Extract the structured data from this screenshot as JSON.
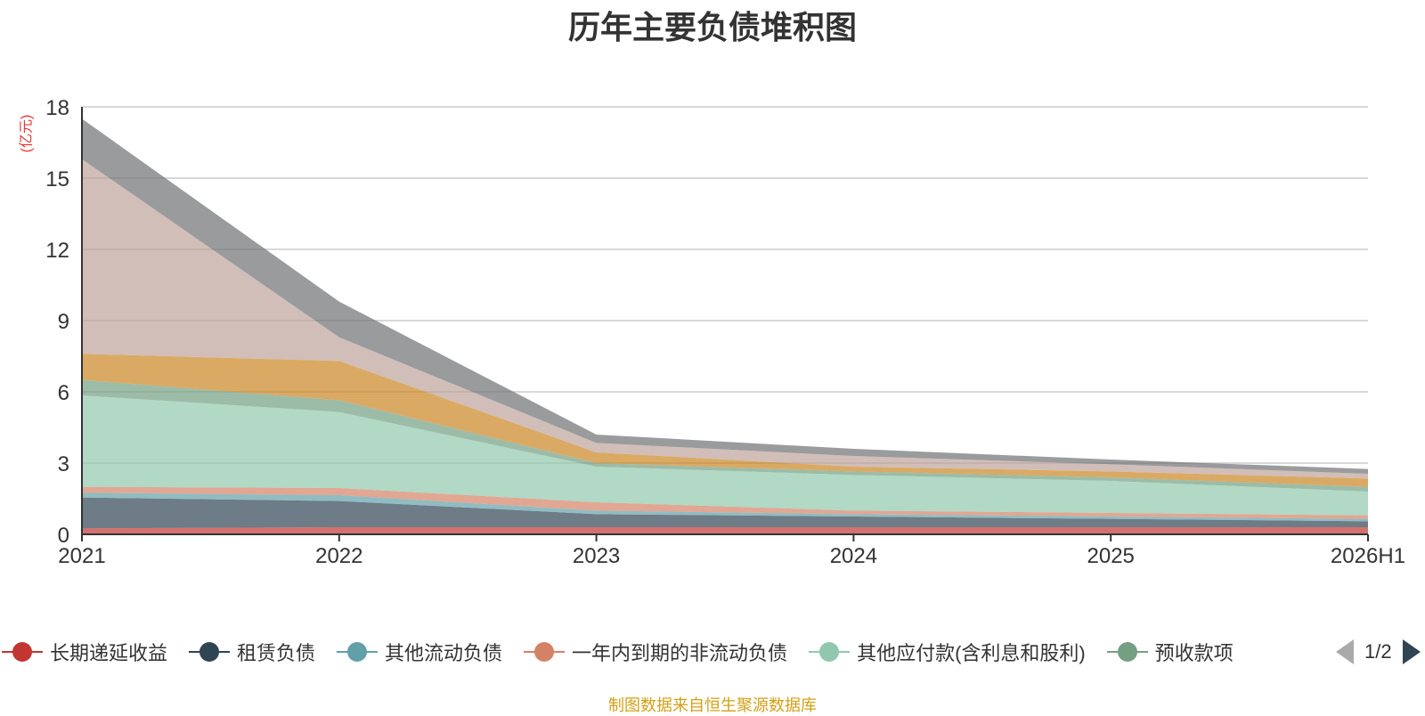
{
  "chart_data": {
    "type": "area",
    "stacked": true,
    "title": "历年主要负债堆积图",
    "ylabel": "(亿元)",
    "xlabel": "",
    "x": [
      "2021",
      "2022",
      "2023",
      "2024",
      "2025",
      "2026H1"
    ],
    "ylim": [
      0,
      18
    ],
    "yticks": [
      0,
      3,
      6,
      9,
      12,
      15,
      18
    ],
    "grid": true,
    "legend_position": "bottom",
    "series": [
      {
        "name": "长期递延收益",
        "color": "#c23531",
        "values": [
          0.25,
          0.3,
          0.3,
          0.3,
          0.3,
          0.3
        ]
      },
      {
        "name": "租赁负债",
        "color": "#2f4554",
        "values": [
          1.3,
          1.1,
          0.55,
          0.45,
          0.35,
          0.25
        ]
      },
      {
        "name": "其他流动负债",
        "color": "#61a0a8",
        "values": [
          0.2,
          0.25,
          0.15,
          0.1,
          0.1,
          0.1
        ]
      },
      {
        "name": "一年内到期的非流动负债",
        "color": "#d48265",
        "values": [
          0.25,
          0.3,
          0.35,
          0.15,
          0.15,
          0.15
        ]
      },
      {
        "name": "其他应付款(含利息和股利)",
        "color": "#91c7ae",
        "values": [
          3.85,
          3.2,
          1.5,
          1.5,
          1.35,
          1.0
        ]
      },
      {
        "name": "预收款项",
        "color": "#749f83",
        "values": [
          0.65,
          0.5,
          0.15,
          0.15,
          0.15,
          0.2
        ]
      },
      {
        "name": "",
        "color": "#ca8622",
        "values": [
          1.1,
          1.65,
          0.45,
          0.2,
          0.25,
          0.35
        ]
      },
      {
        "name": "",
        "color": "#bda29a",
        "values": [
          8.2,
          1.0,
          0.4,
          0.45,
          0.3,
          0.2
        ]
      },
      {
        "name": "",
        "color": "#6e7074",
        "values": [
          1.7,
          1.5,
          0.35,
          0.3,
          0.2,
          0.2
        ]
      }
    ]
  },
  "legend": {
    "page_text": "1/2",
    "visible_names": [
      "长期递延收益",
      "租赁负债",
      "其他流动负债",
      "一年内到期的非流动负债",
      "其他应付款(含利息和股利)",
      "预收款项"
    ]
  },
  "source_text": "制图数据来自恒生聚源数据库"
}
